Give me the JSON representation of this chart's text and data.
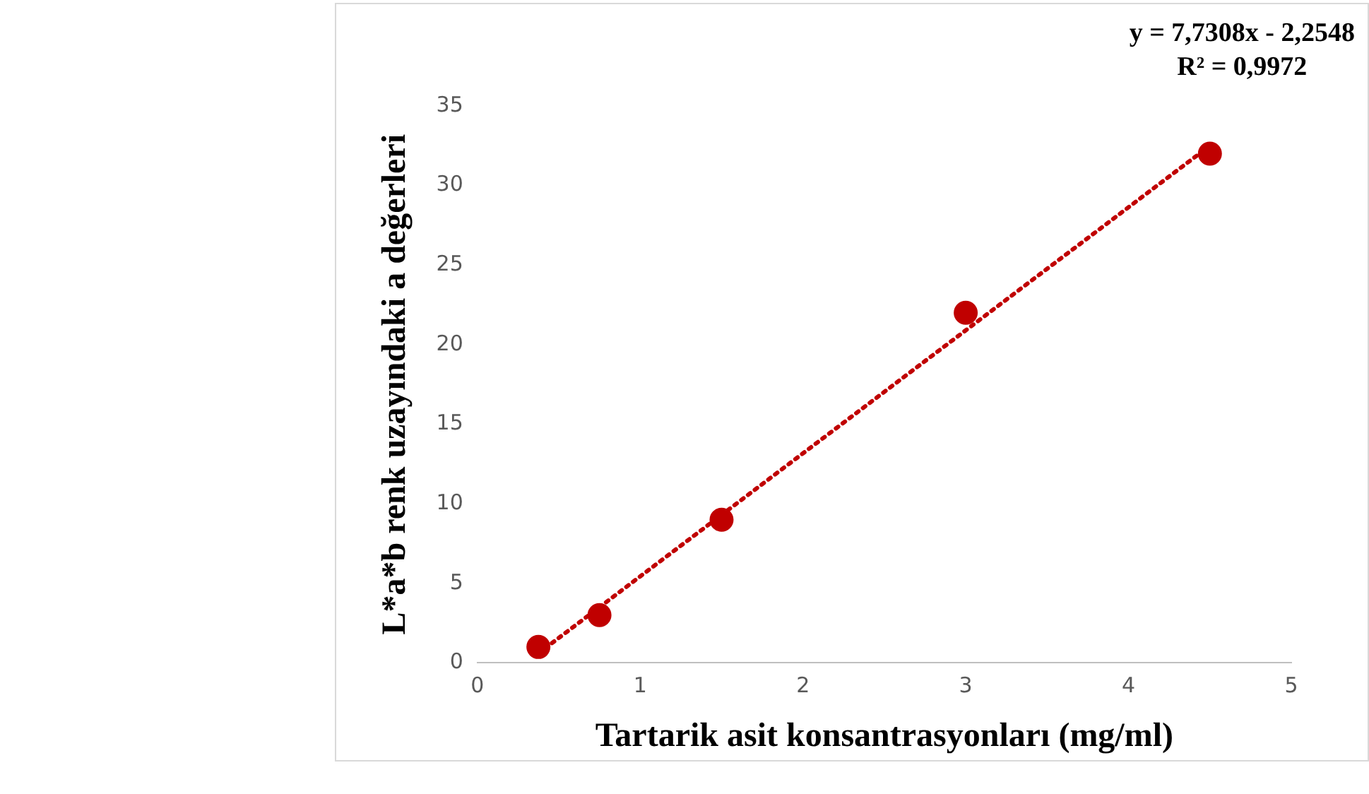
{
  "chart_data": {
    "type": "scatter",
    "xlabel": "Tartarik asit konsantrasyonları (mg/ml)",
    "ylabel": "L*a*b renk uzayındaki a değerleri",
    "xlim": [
      0,
      5
    ],
    "xticks": [
      0,
      1,
      2,
      3,
      4,
      5
    ],
    "ylim": [
      0,
      35
    ],
    "yticks": [
      0,
      5,
      10,
      15,
      20,
      25,
      30,
      35
    ],
    "marker": "circle",
    "grid": false,
    "legend": false,
    "annotations": [
      "y = 7,7308x - 2,2548",
      "R² = 0,9972"
    ],
    "series": [
      {
        "type": "scatter",
        "color": "#c00000",
        "x": [
          0.375,
          0.75,
          1.5,
          3,
          4.5
        ],
        "values": [
          1,
          3,
          9,
          22,
          32
        ]
      },
      {
        "type": "line",
        "color": "#c00000",
        "line_style": "dotted",
        "marker": "none",
        "x": [
          0.375,
          4.5
        ],
        "values": [
          0.6,
          32.5
        ]
      }
    ]
  }
}
